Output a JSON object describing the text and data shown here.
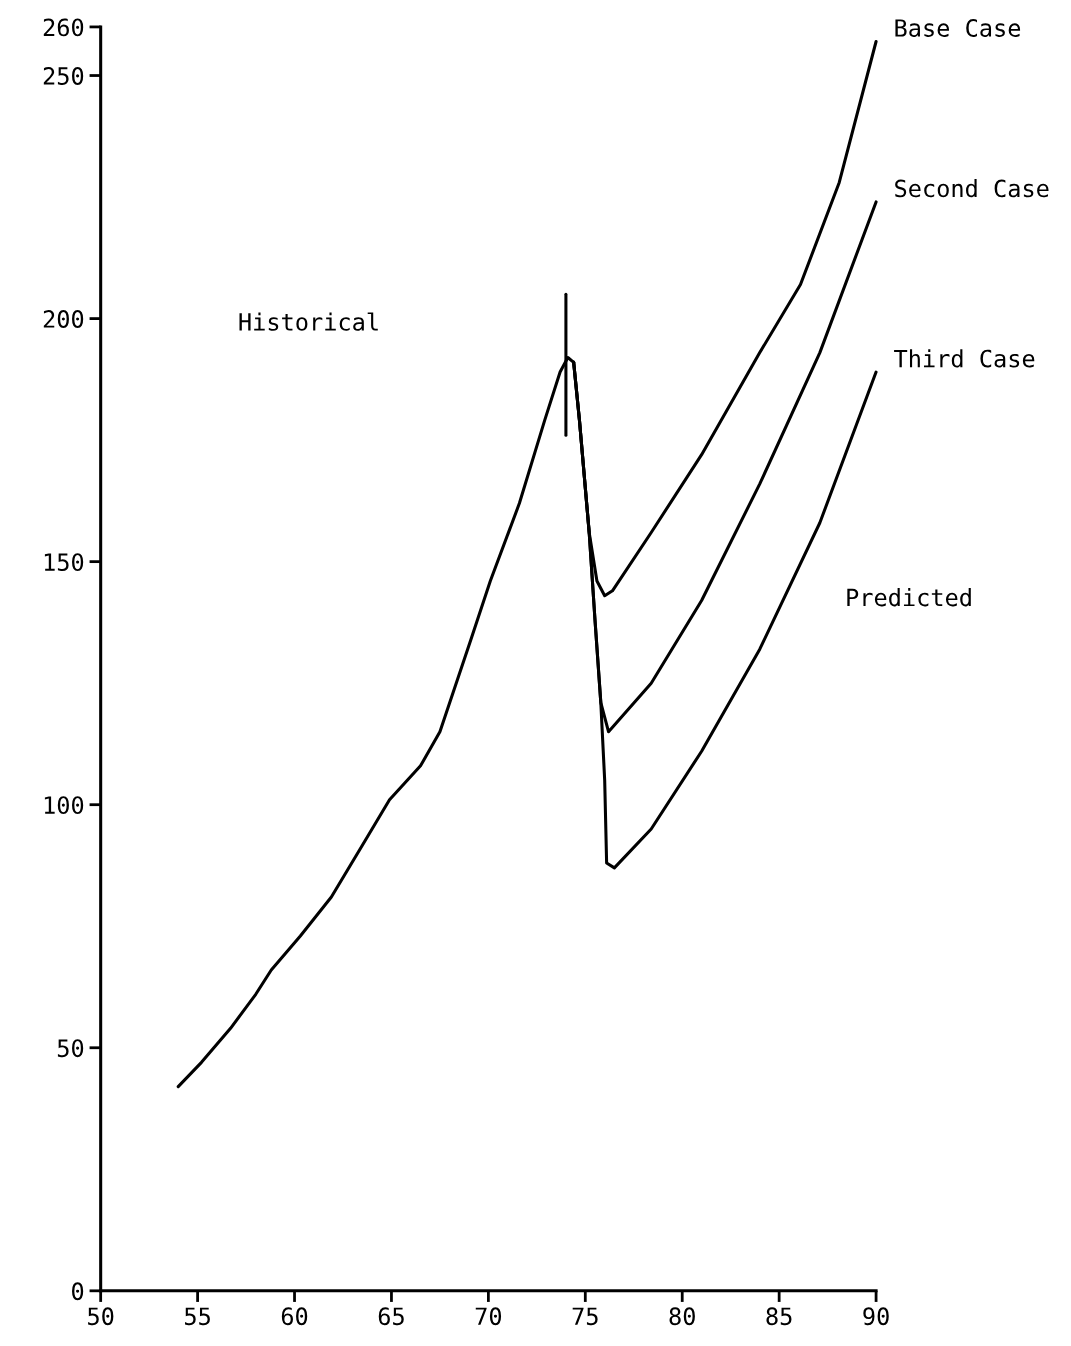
{
  "chart_data": {
    "type": "line",
    "xlim": [
      50,
      90
    ],
    "xticks": [
      50,
      55,
      60,
      65,
      70,
      75,
      80,
      85,
      90
    ],
    "ylim": [
      0,
      260
    ],
    "yticks": [
      0,
      50,
      100,
      150,
      200,
      250,
      260
    ],
    "grid": false,
    "legend": false,
    "marker": "none",
    "line_style": "solid",
    "annotations": [
      "Historical",
      "Predicted"
    ],
    "series": [
      {
        "color": "#000000",
        "x": [
          54.0,
          55.2,
          56.7,
          58.0,
          58.8,
          60.3,
          61.9,
          63.4,
          64.9,
          66.5,
          67.5,
          69.1,
          70.1,
          71.6,
          72.9,
          73.7,
          74.1,
          74.4
        ],
        "values": [
          42,
          47,
          54,
          61,
          66,
          73,
          81,
          91,
          101,
          108,
          115,
          134,
          146,
          162,
          179,
          189,
          192,
          191
        ]
      },
      {
        "name": "Base Case",
        "color": "#000000",
        "x": [
          74.4,
          74.7,
          75.2,
          75.6,
          76.0,
          76.4,
          78.4,
          81.0,
          84.0,
          86.1,
          88.1,
          90.0
        ],
        "values": [
          191,
          179,
          156,
          146,
          143,
          144,
          156,
          172,
          193,
          207,
          228,
          257
        ]
      },
      {
        "name": "Second Case",
        "color": "#000000",
        "x": [
          74.4,
          74.7,
          75.2,
          75.5,
          75.8,
          76.2,
          78.4,
          81.0,
          84.0,
          87.1,
          90.0
        ],
        "values": [
          191,
          179,
          156,
          138,
          121,
          115,
          125,
          142,
          166,
          193,
          224
        ]
      },
      {
        "name": "Third Case",
        "color": "#000000",
        "x": [
          74.4,
          74.7,
          75.2,
          75.5,
          75.8,
          76.0,
          76.1,
          76.5,
          78.4,
          81.0,
          84.0,
          87.1,
          90.0
        ],
        "values": [
          191,
          179,
          156,
          138,
          121,
          105,
          88,
          87,
          95,
          111,
          132,
          158,
          189
        ]
      },
      {
        "color": "#000000",
        "x": [
          74.0,
          74.0
        ],
        "values": [
          176,
          205
        ]
      }
    ]
  }
}
